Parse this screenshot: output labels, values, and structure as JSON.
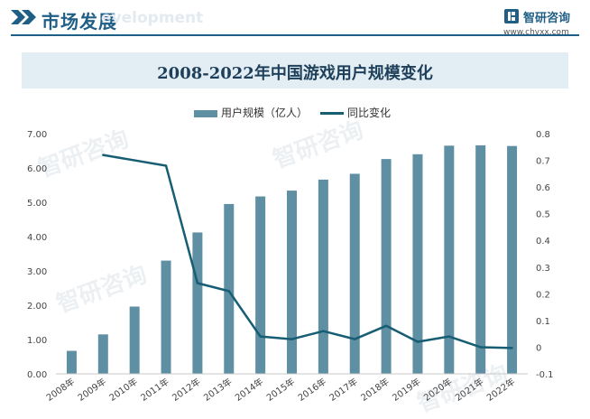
{
  "header": {
    "section_title": "市场发展",
    "ghost_text": "evelopment",
    "brand_name": "智研咨询",
    "brand_url": "www.chyxx.com"
  },
  "watermark_text": "智研咨询",
  "colors": {
    "bar": "#5f8fa3",
    "line": "#175e74",
    "accent": "#1f5f86"
  },
  "chart_data": {
    "type": "bar",
    "title": "2008-2022年中国游戏用户规模变化",
    "legend_position": "top",
    "grid": false,
    "categories": [
      "2008年",
      "2009年",
      "2010年",
      "2011年",
      "2012年",
      "2013年",
      "2014年",
      "2015年",
      "2016年",
      "2017年",
      "2018年",
      "2019年",
      "2020年",
      "2021年",
      "2022年"
    ],
    "series": [
      {
        "name": "用户规模（亿人）",
        "type": "bar",
        "axis": "left",
        "values": [
          0.67,
          1.15,
          1.96,
          3.3,
          4.12,
          4.95,
          5.17,
          5.34,
          5.66,
          5.83,
          6.26,
          6.4,
          6.65,
          6.66,
          6.64
        ]
      },
      {
        "name": "同比变化",
        "type": "line",
        "axis": "right",
        "values": [
          null,
          0.72,
          0.7,
          0.68,
          0.24,
          0.21,
          0.04,
          0.03,
          0.06,
          0.03,
          0.08,
          0.02,
          0.04,
          0.0,
          -0.003
        ]
      }
    ],
    "y_left": {
      "range": [
        0,
        7
      ],
      "ticks": [
        "0.00",
        "1.00",
        "2.00",
        "3.00",
        "4.00",
        "5.00",
        "6.00",
        "7.00"
      ]
    },
    "y_right": {
      "range": [
        -0.1,
        0.8
      ],
      "ticks": [
        "-0.1",
        "0",
        "0.1",
        "0.2",
        "0.3",
        "0.4",
        "0.5",
        "0.6",
        "0.7",
        "0.8"
      ]
    }
  }
}
